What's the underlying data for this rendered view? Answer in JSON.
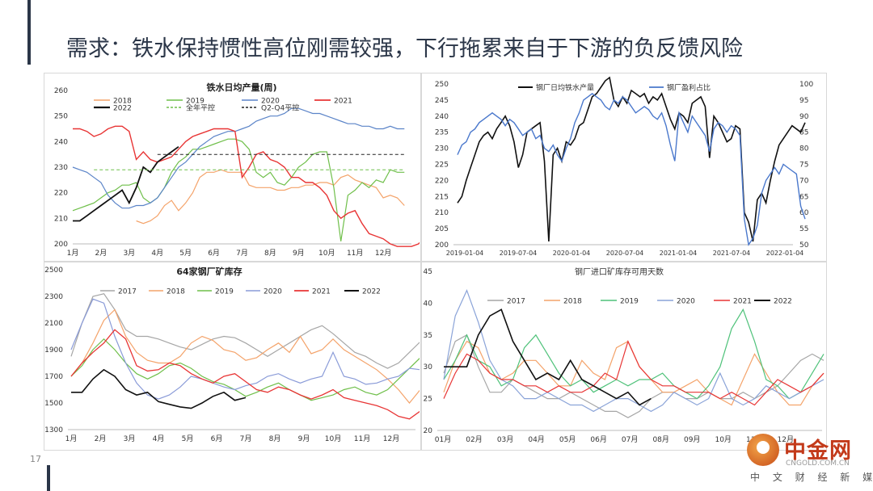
{
  "slide": {
    "title": "需求：铁水保持惯性高位刚需较强，下行拖累来自于下游的负反馈风险",
    "page_number": "17"
  },
  "logo": {
    "name": "中金网",
    "domain": "CNGOLD.COM.CN",
    "sub": "中 文 财 经 新 媒 体"
  },
  "colors": {
    "accent": "#2b3648"
  },
  "chart_data": [
    {
      "id": "iron_daily",
      "type": "line",
      "title": "铁水日均产量(周)",
      "ylim": [
        200,
        260
      ],
      "yticks": [
        200,
        210,
        220,
        230,
        240,
        250,
        260
      ],
      "x_labels": [
        "1月",
        "2月",
        "3月",
        "4月",
        "5月",
        "6月",
        "7月",
        "8月",
        "9月",
        "10月",
        "11月",
        "12月"
      ],
      "series": [
        {
          "name": "2018",
          "color": "#f4a36a",
          "dash": false,
          "width": 1.2,
          "values": [
            null,
            null,
            null,
            null,
            null,
            null,
            null,
            null,
            null,
            209,
            208,
            209,
            211,
            215,
            217,
            213,
            216,
            220,
            226,
            228,
            228,
            229,
            228,
            228,
            228,
            223,
            222,
            222,
            222,
            221,
            221,
            222,
            222,
            223,
            223,
            224,
            224,
            223,
            226,
            227,
            225,
            224,
            223,
            222,
            218,
            219,
            218,
            215
          ]
        },
        {
          "name": "2019",
          "color": "#6fbf4a",
          "dash": false,
          "width": 1.2,
          "values": [
            213,
            214,
            215,
            216,
            218,
            220,
            221,
            223,
            223,
            224,
            218,
            216,
            218,
            222,
            228,
            232,
            234,
            237,
            237,
            238,
            239,
            240,
            241,
            241,
            240,
            237,
            228,
            226,
            228,
            224,
            223,
            226,
            230,
            232,
            235,
            236,
            236,
            222,
            201,
            219,
            221,
            224,
            222,
            225,
            224,
            229,
            228,
            228
          ]
        },
        {
          "name": "2020",
          "color": "#5b84c8",
          "dash": false,
          "width": 1.2,
          "values": [
            230,
            229,
            228,
            226,
            224,
            219,
            216,
            214,
            214,
            215,
            215,
            216,
            218,
            222,
            226,
            230,
            232,
            235,
            238,
            240,
            242,
            243,
            244,
            244,
            245,
            246,
            248,
            249,
            250,
            250,
            251,
            253,
            253,
            252,
            251,
            251,
            250,
            249,
            248,
            247,
            247,
            246,
            246,
            245,
            245,
            246,
            245,
            245
          ]
        },
        {
          "name": "2021",
          "color": "#e83535",
          "dash": false,
          "width": 1.4,
          "values": [
            245,
            245,
            244,
            242,
            243,
            245,
            246,
            246,
            244,
            233,
            236,
            233,
            232,
            233,
            234,
            237,
            240,
            242,
            243,
            244,
            245,
            245,
            245,
            244,
            226,
            230,
            235,
            236,
            233,
            232,
            230,
            226,
            226,
            224,
            224,
            222,
            219,
            213,
            210,
            212,
            213,
            208,
            204,
            203,
            202,
            200,
            199,
            199,
            199,
            200,
            203
          ]
        },
        {
          "name": "2022",
          "color": "#111111",
          "dash": false,
          "width": 1.8,
          "values": [
            209,
            209,
            211,
            213,
            215,
            217,
            219,
            221,
            216,
            222,
            230,
            228,
            232,
            234,
            236,
            238
          ]
        },
        {
          "name": "全年平控",
          "color": "#6fbf4a",
          "dash": true,
          "width": 1,
          "values": [
            null,
            null,
            null,
            229,
            229,
            229,
            229,
            229,
            229,
            229,
            229,
            229,
            229,
            229,
            229,
            229,
            229,
            229,
            229,
            229,
            229,
            229,
            229,
            229,
            229,
            229,
            229,
            229,
            229,
            229,
            229,
            229,
            229,
            229,
            229,
            229,
            229,
            229,
            229,
            229,
            229,
            229,
            229,
            229,
            229,
            229,
            229,
            229
          ]
        },
        {
          "name": "Q2-Q4平控",
          "color": "#222222",
          "dash": true,
          "width": 1,
          "values": [
            null,
            null,
            null,
            null,
            null,
            null,
            null,
            null,
            null,
            null,
            null,
            null,
            235,
            235,
            235,
            235,
            235,
            235,
            235,
            235,
            235,
            235,
            235,
            235,
            235,
            235,
            235,
            235,
            235,
            235,
            235,
            235,
            235,
            235,
            235,
            235,
            235,
            235,
            235,
            235,
            235,
            235,
            235,
            235,
            235,
            235,
            235,
            235
          ]
        }
      ]
    },
    {
      "id": "iron_vs_profit",
      "type": "line",
      "ylim_left": [
        200,
        250
      ],
      "ylim_right": [
        50,
        100
      ],
      "yticks_left": [
        200,
        205,
        210,
        215,
        220,
        225,
        230,
        235,
        240,
        245,
        250
      ],
      "yticks_right": [
        50,
        55,
        60,
        65,
        70,
        75,
        80,
        85,
        90,
        95,
        100
      ],
      "x_labels": [
        "2019-01-04",
        "2019-07-04",
        "2020-01-04",
        "2020-07-04",
        "2021-01-04",
        "2021-07-04",
        "2022-01-04"
      ],
      "series": [
        {
          "name": "钢厂日均铁水产量",
          "color": "#111111",
          "axis": "left",
          "width": 1.6,
          "values": [
            213,
            215,
            220,
            224,
            228,
            232,
            234,
            235,
            233,
            236,
            238,
            240,
            237,
            232,
            224,
            228,
            235,
            236,
            237,
            238,
            226,
            201,
            228,
            230,
            226,
            232,
            231,
            233,
            237,
            238,
            242,
            246,
            247,
            249,
            251,
            252,
            245,
            243,
            246,
            244,
            248,
            247,
            246,
            247,
            244,
            246,
            245,
            247,
            243,
            239,
            236,
            241,
            240,
            238,
            244,
            245,
            246,
            243,
            227,
            240,
            238,
            235,
            232,
            233,
            237,
            236,
            210,
            207,
            201,
            214,
            216,
            213,
            220,
            226,
            231,
            233,
            235,
            237,
            236,
            235,
            238
          ]
        },
        {
          "name": "钢厂盈利占比",
          "color": "#4a78cc",
          "axis": "left_scaled",
          "width": 1.4,
          "values": [
            78,
            81,
            82,
            85,
            86,
            88,
            89,
            90,
            91,
            90,
            89,
            87,
            89,
            88,
            86,
            84,
            85,
            86,
            83,
            84,
            80,
            79,
            81,
            78,
            76,
            80,
            83,
            88,
            91,
            95,
            96,
            97,
            96,
            95,
            93,
            92,
            95,
            94,
            96,
            95,
            93,
            91,
            92,
            93,
            92,
            90,
            89,
            91,
            87,
            81,
            76,
            91,
            88,
            85,
            90,
            88,
            86,
            84,
            79,
            86,
            88,
            87,
            85,
            87,
            86,
            84,
            58,
            50,
            52,
            56,
            66,
            70,
            72,
            74,
            72,
            75,
            74,
            73,
            72,
            62,
            58
          ]
        }
      ]
    },
    {
      "id": "ore_inventory_64",
      "type": "line",
      "title": "64家钢厂矿库存",
      "ylim": [
        1300,
        2500
      ],
      "yticks": [
        1300,
        1500,
        1700,
        1900,
        2100,
        2300,
        2500
      ],
      "x_labels": [
        "1月",
        "2月",
        "3月",
        "4月",
        "5月",
        "6月",
        "7月",
        "8月",
        "9月",
        "10月",
        "11月",
        "12月"
      ],
      "series": [
        {
          "name": "2017",
          "color": "#a6a6a6",
          "width": 1.2,
          "values": [
            1850,
            2100,
            2300,
            2320,
            2200,
            2050,
            2000,
            2000,
            1980,
            1950,
            1920,
            1900,
            1940,
            1980,
            2000,
            1990,
            1950,
            1900,
            1850,
            1900,
            1950,
            2000,
            2050,
            2080,
            2020,
            1950,
            1880,
            1850,
            1800,
            1760,
            1800,
            1880,
            1960
          ]
        },
        {
          "name": "2018",
          "color": "#f4a36a",
          "width": 1.2,
          "values": [
            1700,
            1800,
            1950,
            2120,
            2200,
            2000,
            1880,
            1820,
            1800,
            1800,
            1850,
            1950,
            2000,
            1970,
            1900,
            1880,
            1820,
            1840,
            1900,
            1950,
            1880,
            2000,
            1870,
            1900,
            1980,
            1900,
            1850,
            1800,
            1750,
            1680,
            1600,
            1500,
            1600
          ]
        },
        {
          "name": "2019",
          "color": "#6fbf4a",
          "width": 1.2,
          "values": [
            1700,
            1780,
            1900,
            1980,
            1900,
            1800,
            1720,
            1680,
            1720,
            1780,
            1800,
            1760,
            1700,
            1660,
            1640,
            1600,
            1550,
            1580,
            1620,
            1650,
            1600,
            1560,
            1520,
            1540,
            1560,
            1600,
            1620,
            1580,
            1560,
            1600,
            1680,
            1760,
            1840
          ]
        },
        {
          "name": "2020",
          "color": "#8a9bd8",
          "width": 1.2,
          "values": [
            1900,
            2100,
            2280,
            2250,
            2000,
            1800,
            1650,
            1560,
            1530,
            1560,
            1620,
            1700,
            1680,
            1650,
            1620,
            1600,
            1630,
            1650,
            1700,
            1720,
            1680,
            1650,
            1680,
            1700,
            1880,
            1700,
            1680,
            1640,
            1650,
            1680,
            1700,
            1760,
            1750
          ]
        },
        {
          "name": "2021",
          "color": "#e83535",
          "width": 1.3,
          "values": [
            1700,
            1800,
            1880,
            1950,
            2050,
            1980,
            1780,
            1740,
            1750,
            1800,
            1780,
            1720,
            1680,
            1650,
            1700,
            1720,
            1660,
            1600,
            1580,
            1620,
            1600,
            1560,
            1530,
            1560,
            1600,
            1540,
            1520,
            1500,
            1480,
            1450,
            1400,
            1380,
            1440
          ]
        },
        {
          "name": "2022",
          "color": "#111111",
          "width": 1.6,
          "values": [
            1580,
            1580,
            1680,
            1750,
            1700,
            1600,
            1560,
            1580,
            1510,
            1490,
            1470,
            1460,
            1500,
            1550,
            1580,
            1520,
            1540
          ]
        }
      ]
    },
    {
      "id": "import_ore_days",
      "type": "line",
      "title": "钢厂进口矿库存可用天数",
      "ylim": [
        20,
        45
      ],
      "yticks": [
        20,
        25,
        30,
        35,
        40,
        45
      ],
      "x_labels": [
        "01月",
        "02月",
        "03月",
        "04月",
        "05月",
        "06月",
        "07月",
        "08月",
        "09月",
        "10月",
        "11月",
        "12月"
      ],
      "series": [
        {
          "name": "2017",
          "color": "#a6a6a6",
          "width": 1.2,
          "values": [
            29,
            34,
            35,
            30,
            26,
            26,
            28,
            27,
            26,
            25,
            25,
            26,
            25,
            24,
            23,
            23,
            22,
            23,
            25,
            26,
            26,
            25,
            25,
            26,
            25,
            25,
            26,
            25,
            26,
            27,
            29,
            31,
            32,
            31
          ]
        },
        {
          "name": "2018",
          "color": "#f4a36a",
          "width": 1.2,
          "values": [
            26,
            31,
            34,
            33,
            29,
            28,
            29,
            31,
            31,
            29,
            27,
            27,
            31,
            29,
            28,
            33,
            34,
            30,
            28,
            26,
            26,
            27,
            28,
            26,
            25,
            24,
            28,
            32,
            29,
            26,
            24,
            24,
            27,
            29
          ]
        },
        {
          "name": "2019",
          "color": "#4fc27a",
          "width": 1.2,
          "values": [
            28,
            31,
            35,
            31,
            30,
            27,
            28,
            33,
            35,
            32,
            29,
            27,
            28,
            26,
            27,
            28,
            27,
            28,
            28,
            29,
            27,
            26,
            25,
            27,
            30,
            36,
            39,
            34,
            28,
            27,
            25,
            26,
            29,
            32
          ]
        },
        {
          "name": "2020",
          "color": "#8aa3d8",
          "width": 1.2,
          "values": [
            28,
            38,
            42,
            37,
            31,
            28,
            27,
            25,
            25,
            26,
            25,
            24,
            24,
            23,
            24,
            25,
            25,
            24,
            23,
            24,
            26,
            25,
            24,
            25,
            29,
            25,
            24,
            25,
            27,
            26,
            25,
            26,
            27,
            28
          ]
        },
        {
          "name": "2021",
          "color": "#e83535",
          "width": 1.2,
          "values": [
            25,
            29,
            32,
            31,
            29,
            28,
            28,
            27,
            27,
            26,
            27,
            26,
            26,
            27,
            29,
            28,
            34,
            30,
            28,
            27,
            27,
            26,
            26,
            26,
            25,
            26,
            25,
            24,
            26,
            28,
            27,
            26,
            27,
            29
          ]
        },
        {
          "name": "2022",
          "color": "#111111",
          "width": 1.6,
          "values": [
            30,
            30,
            30,
            35,
            38,
            39,
            34,
            31,
            28,
            29,
            28,
            31,
            28,
            27,
            26,
            25,
            26,
            24,
            25
          ]
        }
      ]
    }
  ]
}
